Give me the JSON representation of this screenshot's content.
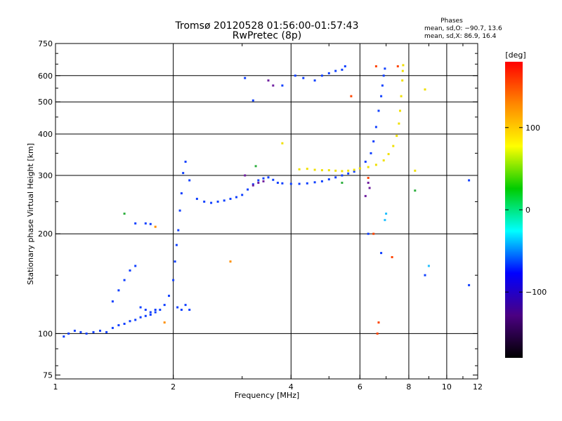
{
  "chart_data": {
    "type": "scatter",
    "title": "Tromsø 20120528 01:56:00-01:57:43",
    "subtitle": "RwPretec (8p)",
    "xlabel": "Frequency [MHz]",
    "ylabel": "Stationary phase Virtual Height [km]",
    "x_scale": "log",
    "y_scale": "log",
    "xlim": [
      1,
      12
    ],
    "ylim": [
      73,
      750
    ],
    "x_ticks": [
      1,
      2,
      4,
      6,
      8,
      10,
      12
    ],
    "x_tick_labels": [
      "1",
      "2",
      "4",
      "6",
      "8",
      "10",
      "12"
    ],
    "y_ticks": [
      75,
      100,
      200,
      300,
      400,
      500,
      600,
      750
    ],
    "y_tick_labels": [
      "75",
      "100",
      "200",
      "300",
      "400",
      "500",
      "600",
      "750"
    ],
    "grid_x": [
      2,
      4,
      6,
      8,
      10
    ],
    "grid_y": [
      100,
      200,
      300,
      400,
      500,
      600
    ],
    "phases_header": "Phases",
    "phases_lines": [
      "mean, sd,O: −90.7, 13.6",
      "mean, sd,X:  86.9, 16.4"
    ],
    "colorbar": {
      "label": "[deg]",
      "range": [
        -180,
        180
      ],
      "ticks": [
        100,
        0,
        -100
      ],
      "tick_labels": [
        "100",
        "0",
        "−100"
      ],
      "colors": [
        "#ff0000",
        "#ff8800",
        "#ffff00",
        "#00cc00",
        "#00ffff",
        "#0000ff",
        "#4b0082",
        "#000000"
      ]
    },
    "series": [
      {
        "phase_deg": -100,
        "color": "#1040ff",
        "points": [
          [
            1.05,
            98
          ],
          [
            1.08,
            100
          ],
          [
            1.12,
            102
          ],
          [
            1.16,
            101
          ],
          [
            1.2,
            100
          ],
          [
            1.25,
            101
          ],
          [
            1.3,
            102
          ],
          [
            1.35,
            101
          ],
          [
            1.4,
            104
          ],
          [
            1.45,
            106
          ],
          [
            1.5,
            107
          ],
          [
            1.55,
            109
          ],
          [
            1.6,
            110
          ],
          [
            1.65,
            112
          ],
          [
            1.7,
            113
          ],
          [
            1.75,
            114
          ],
          [
            1.8,
            116
          ],
          [
            1.85,
            118
          ],
          [
            1.9,
            122
          ],
          [
            1.95,
            130
          ],
          [
            2.0,
            145
          ],
          [
            2.02,
            165
          ],
          [
            2.04,
            185
          ],
          [
            2.06,
            205
          ],
          [
            2.08,
            235
          ],
          [
            2.1,
            265
          ],
          [
            2.12,
            305
          ],
          [
            2.15,
            330
          ],
          [
            2.2,
            290
          ],
          [
            2.3,
            255
          ],
          [
            2.4,
            250
          ],
          [
            2.5,
            248
          ],
          [
            2.6,
            250
          ],
          [
            2.7,
            252
          ],
          [
            2.8,
            255
          ],
          [
            2.9,
            258
          ],
          [
            3.0,
            262
          ],
          [
            3.1,
            272
          ],
          [
            3.2,
            282
          ],
          [
            3.3,
            290
          ],
          [
            3.4,
            294
          ],
          [
            3.5,
            296
          ],
          [
            3.6,
            291
          ],
          [
            3.7,
            285
          ],
          [
            3.8,
            284
          ],
          [
            4.0,
            283
          ],
          [
            4.2,
            283
          ],
          [
            4.4,
            284
          ],
          [
            4.6,
            286
          ],
          [
            4.8,
            288
          ],
          [
            5.0,
            292
          ],
          [
            5.2,
            296
          ],
          [
            5.4,
            300
          ],
          [
            5.6,
            304
          ],
          [
            5.8,
            308
          ],
          [
            6.0,
            315
          ],
          [
            6.2,
            330
          ],
          [
            6.4,
            350
          ],
          [
            6.5,
            380
          ],
          [
            6.6,
            420
          ],
          [
            6.7,
            470
          ],
          [
            6.8,
            520
          ],
          [
            6.85,
            560
          ],
          [
            6.9,
            600
          ],
          [
            6.95,
            630
          ],
          [
            1.4,
            125
          ],
          [
            1.45,
            135
          ],
          [
            1.5,
            145
          ],
          [
            1.55,
            155
          ],
          [
            1.6,
            160
          ],
          [
            1.6,
            215
          ],
          [
            1.7,
            215
          ],
          [
            1.75,
            214
          ],
          [
            1.65,
            120
          ],
          [
            1.7,
            118
          ],
          [
            1.75,
            116
          ],
          [
            1.8,
            118
          ],
          [
            2.05,
            120
          ],
          [
            2.1,
            118
          ],
          [
            2.15,
            122
          ],
          [
            2.2,
            118
          ],
          [
            3.05,
            590
          ],
          [
            3.2,
            505
          ],
          [
            3.8,
            560
          ],
          [
            4.1,
            600
          ],
          [
            4.3,
            590
          ],
          [
            4.6,
            580
          ],
          [
            4.8,
            600
          ],
          [
            5.0,
            610
          ],
          [
            5.2,
            620
          ],
          [
            5.4,
            625
          ],
          [
            5.5,
            640
          ],
          [
            6.3,
            200
          ],
          [
            6.8,
            175
          ],
          [
            8.8,
            150
          ],
          [
            11.4,
            140
          ],
          [
            11.4,
            290
          ]
        ]
      },
      {
        "phase_deg": 100,
        "color": "#f0e000",
        "points": [
          [
            4.2,
            313
          ],
          [
            4.4,
            314
          ],
          [
            4.6,
            312
          ],
          [
            4.8,
            311
          ],
          [
            5.0,
            311
          ],
          [
            5.2,
            310
          ],
          [
            5.4,
            309
          ],
          [
            5.6,
            310
          ],
          [
            5.8,
            312
          ],
          [
            6.0,
            315
          ],
          [
            6.3,
            318
          ],
          [
            6.6,
            323
          ],
          [
            6.9,
            333
          ],
          [
            7.1,
            348
          ],
          [
            7.3,
            368
          ],
          [
            7.45,
            395
          ],
          [
            7.55,
            430
          ],
          [
            7.6,
            470
          ],
          [
            7.65,
            520
          ],
          [
            7.7,
            580
          ],
          [
            7.72,
            620
          ],
          [
            7.74,
            645
          ],
          [
            8.3,
            310
          ],
          [
            8.8,
            545
          ],
          [
            3.8,
            375
          ]
        ]
      },
      {
        "phase_deg": -150,
        "color": "#7020a0",
        "points": [
          [
            3.2,
            280
          ],
          [
            3.3,
            285
          ],
          [
            3.4,
            288
          ],
          [
            6.2,
            260
          ],
          [
            6.3,
            285
          ],
          [
            6.35,
            275
          ],
          [
            3.5,
            580
          ],
          [
            3.6,
            560
          ],
          [
            3.05,
            300
          ]
        ]
      },
      {
        "phase_deg": 160,
        "color": "#ff4400",
        "points": [
          [
            6.6,
            640
          ],
          [
            6.65,
            100
          ],
          [
            6.7,
            108
          ],
          [
            6.5,
            200
          ],
          [
            7.25,
            170
          ],
          [
            7.5,
            640
          ],
          [
            6.3,
            295
          ],
          [
            5.7,
            520
          ]
        ]
      },
      {
        "phase_deg": 40,
        "color": "#30b040",
        "points": [
          [
            1.5,
            230
          ],
          [
            3.25,
            320
          ],
          [
            5.4,
            285
          ],
          [
            8.3,
            270
          ]
        ]
      },
      {
        "phase_deg": 150,
        "color": "#ff9000",
        "points": [
          [
            2.8,
            165
          ],
          [
            1.9,
            108
          ],
          [
            1.8,
            210
          ]
        ]
      },
      {
        "phase_deg": -40,
        "color": "#20c0ff",
        "points": [
          [
            7.0,
            230
          ],
          [
            6.95,
            220
          ],
          [
            9.0,
            160
          ]
        ]
      }
    ]
  }
}
